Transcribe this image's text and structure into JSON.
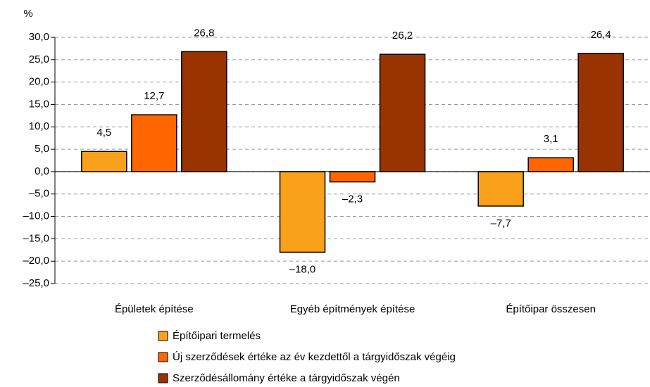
{
  "chart_data": {
    "type": "bar",
    "ylabel": "%",
    "categories": [
      "Épületek építése",
      "Egyéb építmények építése",
      "Építőipar összesen"
    ],
    "series": [
      {
        "name": "Építőipari termelés",
        "color": "#f9a11b",
        "values": [
          4.5,
          -18.0,
          -7.7
        ],
        "value_labels": [
          "4,5",
          "–18,0",
          "–7,7"
        ]
      },
      {
        "name": "Új szerződések értéke az év kezdettől a tárgyidőszak végéig",
        "color": "#ff6600",
        "values": [
          12.7,
          -2.3,
          3.1
        ],
        "value_labels": [
          "12,7",
          "–2,3",
          "3,1"
        ]
      },
      {
        "name": "Szerződésállomány értéke a tárgyidőszak végén",
        "color": "#993300",
        "values": [
          26.8,
          26.2,
          26.4
        ],
        "value_labels": [
          "26,8",
          "26,2",
          "26,4"
        ]
      }
    ],
    "ylim": [
      -25,
      30
    ],
    "yticks": [
      {
        "value": 30,
        "label": "30,0"
      },
      {
        "value": 25,
        "label": "25,0"
      },
      {
        "value": 20,
        "label": "20,0"
      },
      {
        "value": 15,
        "label": "15,0"
      },
      {
        "value": 10,
        "label": "10,0"
      },
      {
        "value": 5,
        "label": "5,0"
      },
      {
        "value": 0,
        "label": "0,0"
      },
      {
        "value": -5,
        "label": "–5,0"
      },
      {
        "value": -10,
        "label": "–10,0"
      },
      {
        "value": -15,
        "label": "–15,0"
      },
      {
        "value": -20,
        "label": "–20,0"
      },
      {
        "value": -25,
        "label": "–25,0"
      }
    ],
    "grid": true
  }
}
